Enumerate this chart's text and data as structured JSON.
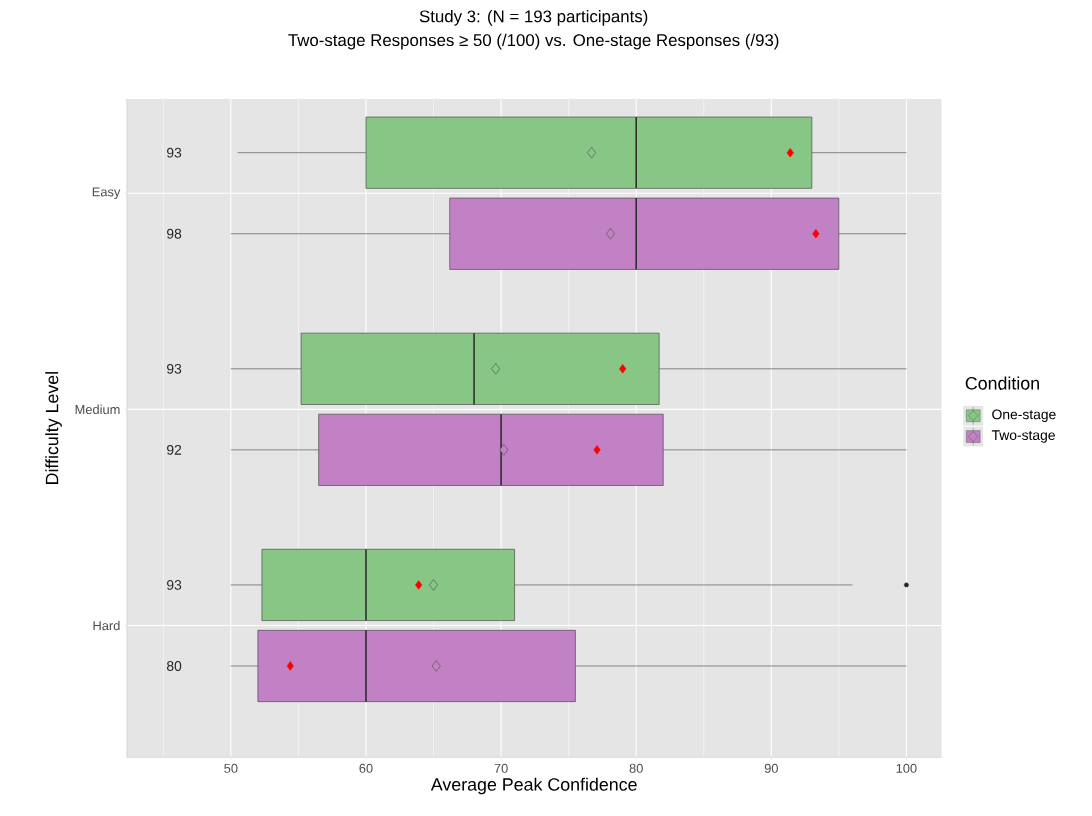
{
  "chart_data": {
    "type": "box",
    "orientation": "horizontal",
    "title": "Study 3: (N = 193 participants)",
    "subtitle": "Two-stage Responses ≥ 50 (/100) vs. One-stage Responses (/93)",
    "xlabel": "Average Peak Confidence",
    "ylabel": "Difficulty Level",
    "legend_title": "Condition",
    "legend": "right",
    "grid": true,
    "categories": [
      "Easy",
      "Medium",
      "Hard"
    ],
    "xlim": [
      42.3,
      102.6
    ],
    "xticks": [
      {
        "value": 45,
        "label": null
      },
      50,
      {
        "value": 55,
        "label": null
      },
      60,
      {
        "value": 65,
        "label": null
      },
      70,
      {
        "value": 75,
        "label": null
      },
      80,
      {
        "value": 85,
        "label": null
      },
      90,
      {
        "value": 95,
        "label": null
      },
      100
    ],
    "series": [
      {
        "name": "One-stage",
        "color": "#88c686",
        "value_labels": [
          "93",
          "93",
          "93"
        ],
        "boxes": [
          {
            "low": 50.5,
            "q1": 60,
            "median": 80,
            "q3": 93,
            "high": 100,
            "mean": 76.7
          },
          {
            "low": 50,
            "q1": 55.2,
            "median": 68,
            "q3": 81.7,
            "high": 100,
            "mean": 69.6
          },
          {
            "low": 50,
            "q1": 52.3,
            "median": 60,
            "q3": 71,
            "high": 96,
            "mean": 65,
            "outliers": [
              100
            ]
          }
        ]
      },
      {
        "name": "Two-stage",
        "color": "#c281c4",
        "value_labels": [
          "98",
          "92",
          "80"
        ],
        "boxes": [
          {
            "low": 50,
            "q1": 66.2,
            "median": 80,
            "q3": 95,
            "high": 100,
            "mean": 78.1
          },
          {
            "low": 50,
            "q1": 56.5,
            "median": 70,
            "q3": 82,
            "high": 100,
            "mean": 70.2
          },
          {
            "low": 50,
            "q1": 52,
            "median": 60,
            "q3": 75.5,
            "high": 100,
            "mean": 65.2
          }
        ]
      },
      {
        "type": "scatter",
        "color": "#ff0000",
        "marker": "diamond",
        "values": [
          91.4,
          79.0,
          63.9
        ]
      },
      {
        "type": "scatter",
        "color": "#ff0000",
        "marker": "diamond",
        "values": [
          93.3,
          77.1,
          54.4
        ]
      }
    ]
  }
}
